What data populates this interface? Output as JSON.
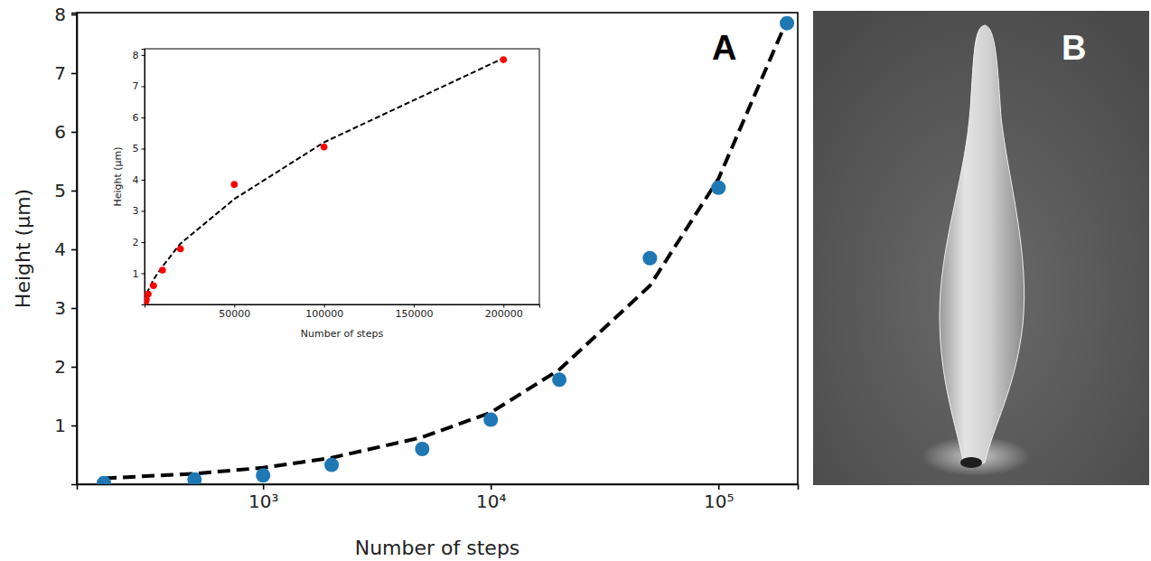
{
  "chart_data": [
    {
      "type": "scatter",
      "panel_label": "A",
      "x_label": "Number of steps",
      "y_label": "Height (μm)",
      "log": "x",
      "grid": false,
      "x": [
        200,
        500,
        1000,
        2000,
        5000,
        10000,
        20000,
        50000,
        100000,
        200000
      ],
      "series": [
        {
          "type": "scatter",
          "color": "#1f77b4",
          "marker": "circle",
          "values": [
            0.02,
            0.08,
            0.15,
            0.33,
            0.6,
            1.1,
            1.78,
            3.85,
            5.05,
            7.85
          ]
        },
        {
          "type": "line",
          "color": "#000000",
          "line_style": "dashed",
          "values": [
            0.1,
            0.18,
            0.28,
            0.45,
            0.8,
            1.22,
            1.95,
            3.38,
            5.2,
            7.9
          ]
        }
      ],
      "xlim": [
        152,
        223000
      ],
      "xticks": [
        {
          "value": 1000,
          "label": "10³"
        },
        {
          "value": 10000,
          "label": "10⁴"
        },
        {
          "value": 100000,
          "label": "10⁵"
        }
      ],
      "ylim": [
        0,
        8.03
      ],
      "yticks": [
        1,
        2,
        3,
        4,
        5,
        6,
        7,
        8
      ]
    },
    {
      "type": "scatter",
      "x_label": "Number of steps",
      "y_label": "Height (μm)",
      "grid": false,
      "x": [
        200,
        500,
        1000,
        2000,
        5000,
        10000,
        20000,
        50000,
        100000,
        200000
      ],
      "series": [
        {
          "type": "scatter",
          "color": "#ff0000",
          "marker": "circle",
          "values": [
            0.02,
            0.08,
            0.15,
            0.33,
            0.6,
            1.1,
            1.78,
            3.85,
            5.05,
            7.85
          ]
        },
        {
          "type": "line",
          "color": "#000000",
          "line_style": "dashed",
          "values": [
            0.1,
            0.18,
            0.28,
            0.45,
            0.8,
            1.22,
            1.95,
            3.38,
            5.2,
            7.9
          ]
        }
      ],
      "xlim": [
        0,
        220000
      ],
      "xticks": [
        50000,
        100000,
        150000,
        200000
      ],
      "ylim": [
        0,
        8.2
      ],
      "yticks": [
        1,
        2,
        3,
        4,
        5,
        6,
        7,
        8
      ]
    }
  ],
  "image": {
    "panel_label": "B"
  }
}
